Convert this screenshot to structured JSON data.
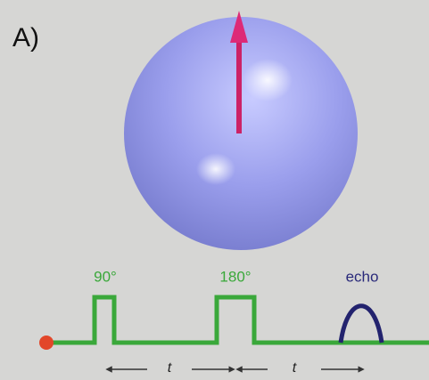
{
  "panel_label": "A)",
  "pulses": [
    {
      "label": "90°"
    },
    {
      "label": "180°"
    }
  ],
  "echo": {
    "label": "echo"
  },
  "intervals": [
    {
      "label": "t"
    },
    {
      "label": "t"
    }
  ]
}
